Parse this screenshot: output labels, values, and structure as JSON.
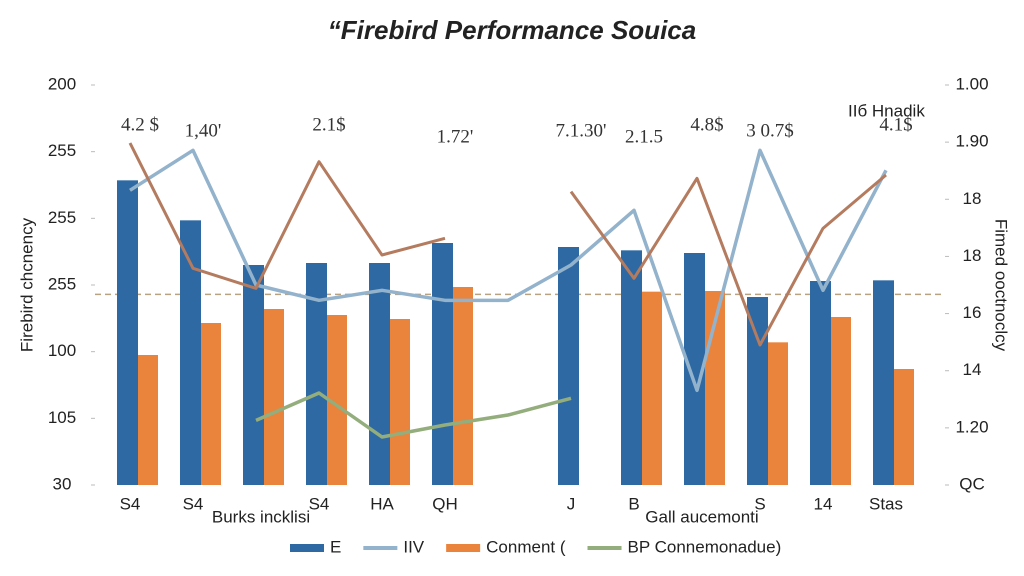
{
  "chart_data": {
    "type": "bar",
    "title": "“Firebird Performance Souica",
    "y_label": "Firebird chcnency",
    "y2_label": "Fimed ooctnoclcy",
    "legend_note": "IIб Hnadik",
    "categories": [
      "S4",
      "S4",
      "Burks incklisi",
      "S4",
      "HA",
      "QH",
      null,
      "J",
      "B",
      "Gall aucemonti",
      "S",
      "14",
      "Stas"
    ],
    "annotations": [
      "4.2 $",
      "1,40'",
      null,
      "2.1$",
      null,
      "1.72'",
      null,
      "7.1.30'",
      "2.1.5",
      "4.8$",
      "3 0.7$",
      null,
      "4.1$"
    ],
    "series": [
      {
        "name": "E",
        "type": "bar",
        "color": "#2e69a3",
        "values": [
          4.57,
          3.97,
          3.3,
          3.33,
          3.33,
          3.63,
          null,
          3.57,
          3.52,
          3.48,
          2.82,
          3.06,
          3.07
        ]
      },
      {
        "name": "IIV",
        "type": "line",
        "color": "#93b2cc",
        "values": [
          4.42,
          5.02,
          3.0,
          2.77,
          2.92,
          2.77,
          2.77,
          3.3,
          4.12,
          1.42,
          5.02,
          2.92,
          4.72
        ]
      },
      {
        "name": "Conment (",
        "type": "bar",
        "color": "#ea833b",
        "values": [
          1.95,
          2.43,
          2.64,
          2.55,
          2.49,
          2.97,
          null,
          null,
          2.9,
          2.91,
          2.14,
          2.52,
          1.74
        ]
      },
      {
        "name": "BP Connemonadue)",
        "type": "line",
        "color": "#93ad7c",
        "values": [
          null,
          null,
          0.97,
          1.38,
          0.72,
          0.9,
          1.05,
          1.3,
          null,
          null,
          null,
          null,
          null
        ]
      }
    ],
    "trend": {
      "color": "#b47b5f",
      "values": [
        5.13,
        3.25,
        2.95,
        4.85,
        3.45,
        3.7,
        null,
        4.4,
        3.1,
        4.6,
        2.1,
        3.85,
        4.65
      ]
    },
    "ref_line": 2.86,
    "ylim": [
      0,
      6
    ],
    "yticks": [
      {
        "value": 0,
        "label": "30"
      },
      {
        "value": 1,
        "label": "105"
      },
      {
        "value": 2,
        "label": "100"
      },
      {
        "value": 3,
        "label": "255"
      },
      {
        "value": 4,
        "label": "255"
      },
      {
        "value": 5,
        "label": "255"
      },
      {
        "value": 6,
        "label": "200"
      }
    ],
    "y2lim": [
      0,
      7
    ],
    "y2ticks": [
      {
        "value": 0,
        "label": "QC"
      },
      {
        "value": 1,
        "label": "1.20"
      },
      {
        "value": 2,
        "label": "14"
      },
      {
        "value": 3,
        "label": "16"
      },
      {
        "value": 4,
        "label": "18"
      },
      {
        "value": 5,
        "label": "18"
      },
      {
        "value": 6,
        "label": "1.90"
      },
      {
        "value": 7,
        "label": "1.00"
      }
    ]
  }
}
